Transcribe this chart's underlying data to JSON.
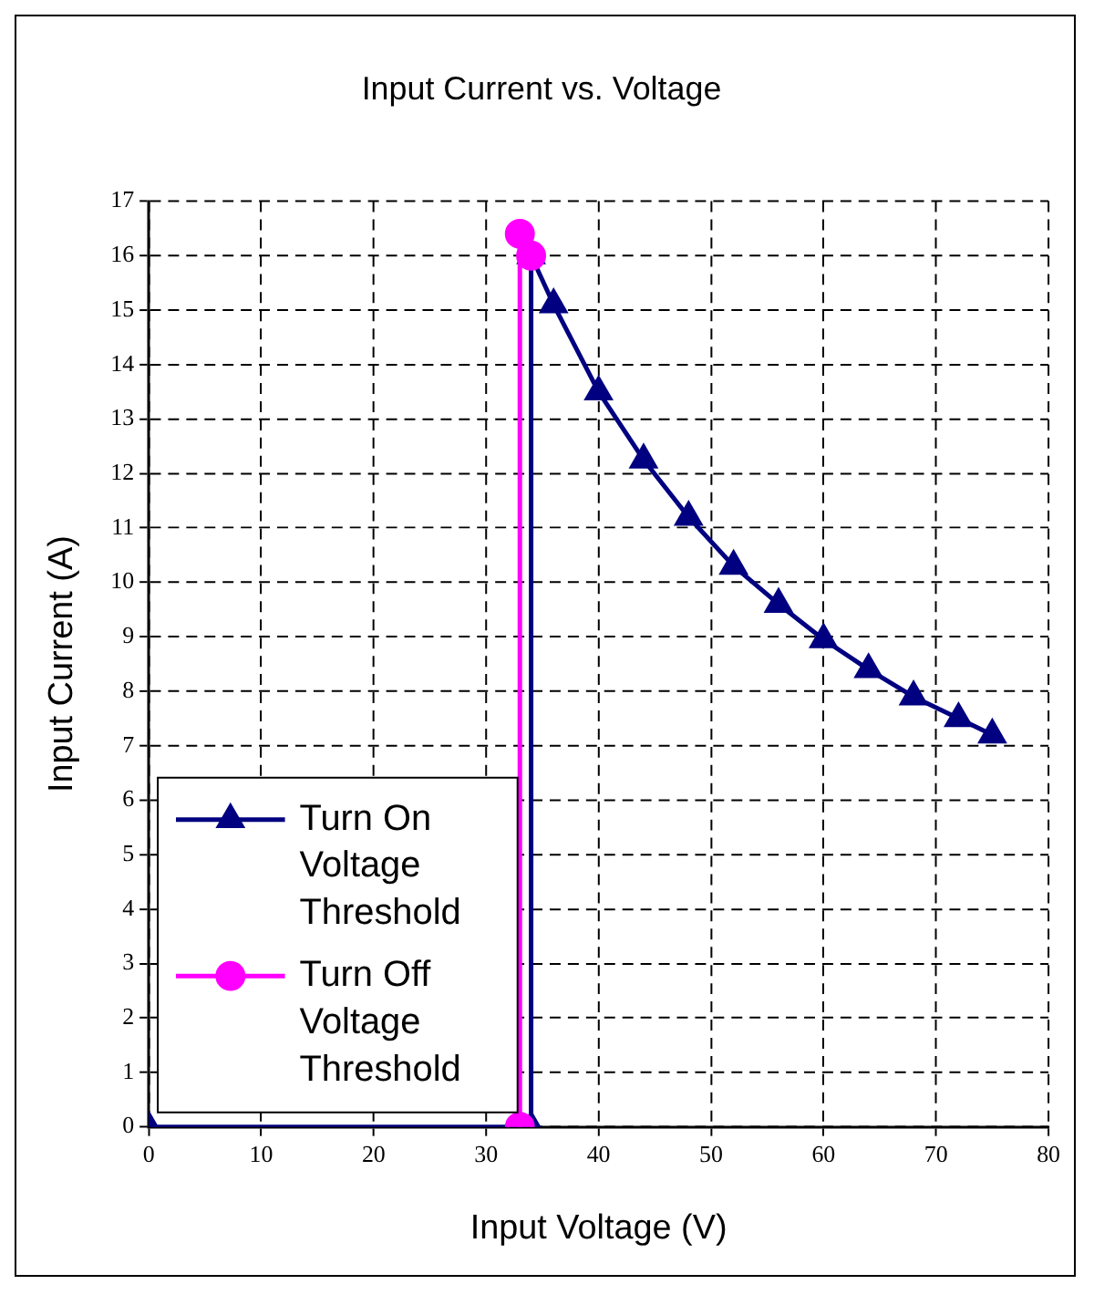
{
  "chart_data": {
    "type": "line",
    "title": "Input Current vs. Voltage",
    "xlabel": "Input Voltage (V)",
    "ylabel": "Input Current (A)",
    "xlim": [
      0,
      80
    ],
    "xticks": [
      0,
      10,
      20,
      30,
      40,
      50,
      60,
      70,
      80
    ],
    "ylim": [
      0,
      17
    ],
    "yticks": [
      0,
      1,
      2,
      3,
      4,
      5,
      6,
      7,
      8,
      9,
      10,
      11,
      12,
      13,
      14,
      15,
      16,
      17
    ],
    "grid": true,
    "legend": "bottom left",
    "line_style": "solid",
    "series": [
      {
        "name": "Turn On Voltage Threshold",
        "color": "#000080",
        "marker": "triangle",
        "x": [
          0,
          34,
          34,
          36,
          40,
          44,
          48,
          52,
          56,
          60,
          64,
          68,
          72,
          75
        ],
        "values": [
          0,
          0,
          16,
          15.1,
          13.5,
          12.25,
          11.2,
          10.3,
          9.6,
          8.95,
          8.4,
          7.9,
          7.5,
          7.2
        ]
      },
      {
        "name": "Turn Off Voltage Threshold",
        "color": "#ff00ff",
        "marker": "circle",
        "x": [
          33,
          33,
          34
        ],
        "values": [
          0,
          16.4,
          16
        ]
      }
    ]
  }
}
